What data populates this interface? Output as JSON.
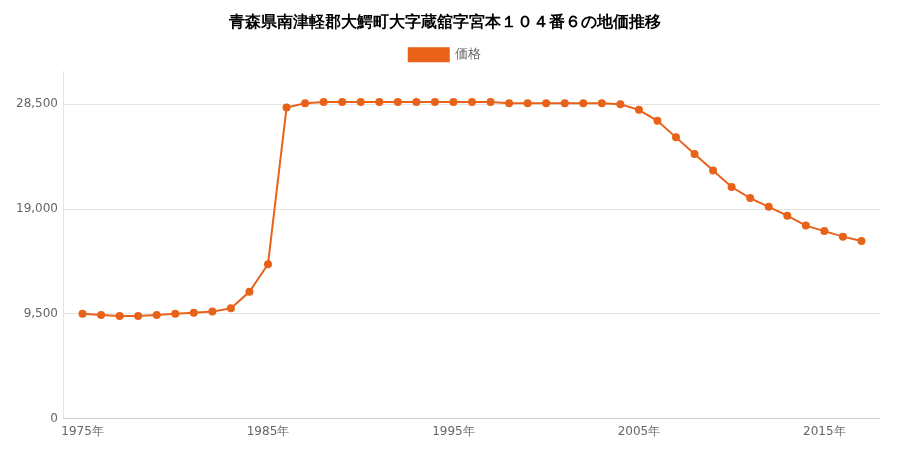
{
  "chart_data": {
    "type": "line",
    "title": "青森県南津軽郡大鰐町大字蔵舘字宮本１０４番６の地価推移",
    "x": [
      1975,
      1976,
      1977,
      1978,
      1979,
      1980,
      1981,
      1982,
      1983,
      1984,
      1985,
      1986,
      1987,
      1988,
      1989,
      1990,
      1991,
      1992,
      1993,
      1994,
      1995,
      1996,
      1997,
      1998,
      1999,
      2000,
      2001,
      2002,
      2003,
      2004,
      2005,
      2006,
      2007,
      2008,
      2009,
      2010,
      2011,
      2012,
      2013,
      2014,
      2015,
      2016,
      2017
    ],
    "series": [
      {
        "name": "価格",
        "color": "#e8621a",
        "marker": "circle",
        "values": [
          9500,
          9400,
          9300,
          9300,
          9400,
          9500,
          9600,
          9700,
          10000,
          11500,
          14000,
          28200,
          28600,
          28700,
          28700,
          28700,
          28700,
          28700,
          28700,
          28700,
          28700,
          28700,
          28700,
          28600,
          28600,
          28600,
          28600,
          28600,
          28600,
          28500,
          28000,
          27000,
          25500,
          24000,
          22500,
          21000,
          20000,
          19200,
          18400,
          17500,
          17000,
          16500,
          16100
        ]
      }
    ],
    "xlim": [
      1974,
      2018
    ],
    "xticks": [
      {
        "value": 1975,
        "label": "1975年"
      },
      {
        "value": 1985,
        "label": "1985年"
      },
      {
        "value": 1995,
        "label": "1995年"
      },
      {
        "value": 2005,
        "label": "2005年"
      },
      {
        "value": 2015,
        "label": "2015年"
      }
    ],
    "ylim": [
      0,
      31500
    ],
    "yticks": [
      0,
      {
        "value": 9500,
        "label": "9,500"
      },
      {
        "value": 19000,
        "label": "19,000"
      },
      {
        "value": 28500,
        "label": "28,500"
      }
    ],
    "grid": "y",
    "legend": "top"
  }
}
